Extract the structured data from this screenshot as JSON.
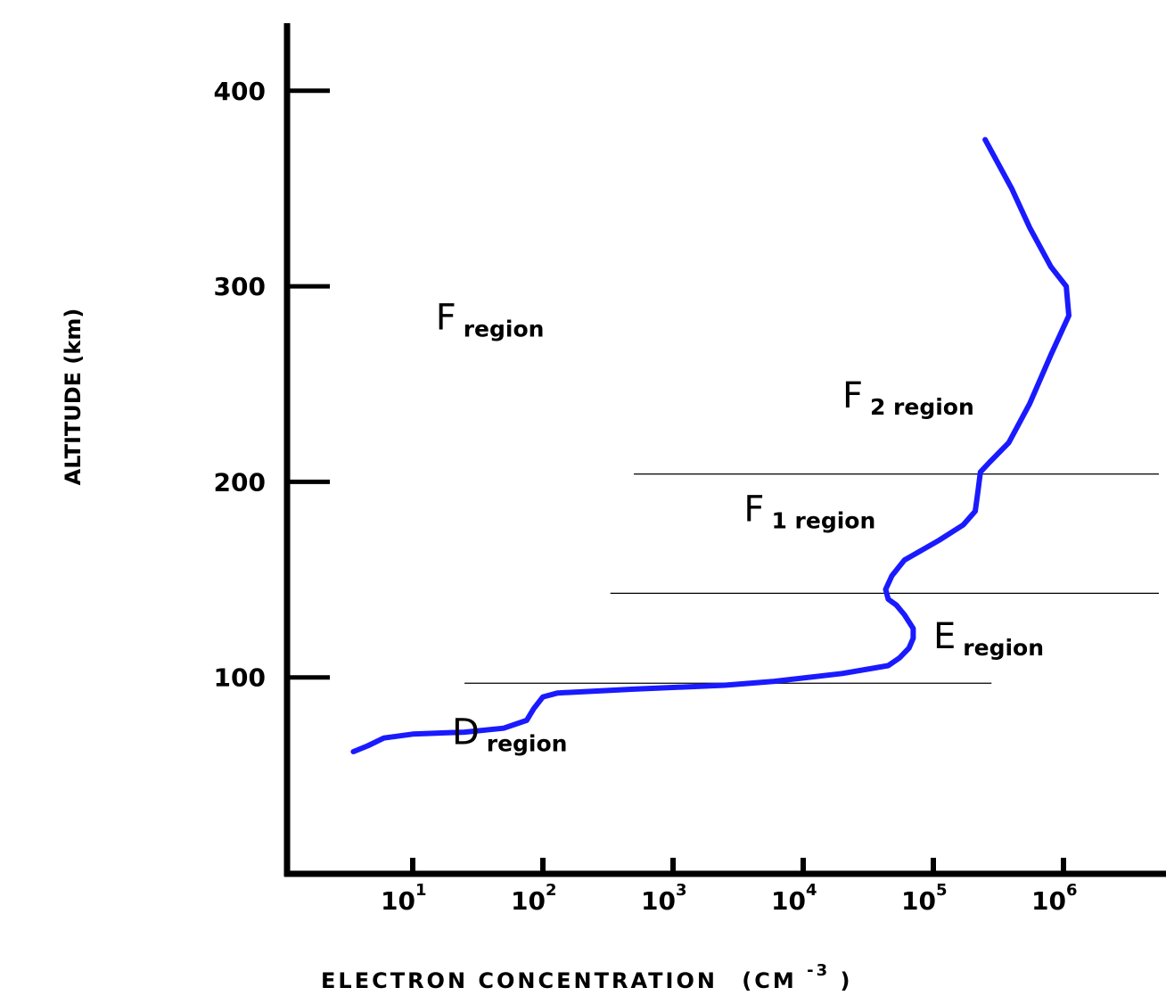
{
  "chart_data": {
    "type": "line",
    "title": "",
    "xlabel": "ELECTRON CONCENTRATION",
    "xlabel_unit": "(CM",
    "xlabel_unit_exp": "-3",
    "xlabel_unit_close": ")",
    "ylabel": "ALTITUDE (km)",
    "x_scale": "log",
    "xlim": [
      1,
      10000000
    ],
    "ylim": [
      0,
      430
    ],
    "y_ticks": [
      100,
      200,
      300,
      400
    ],
    "x_ticks": [
      {
        "base": "10",
        "exp": "1",
        "value": 10
      },
      {
        "base": "10",
        "exp": "2",
        "value": 100
      },
      {
        "base": "10",
        "exp": "3",
        "value": 1000
      },
      {
        "base": "10",
        "exp": "4",
        "value": 10000
      },
      {
        "base": "10",
        "exp": "5",
        "value": 100000
      },
      {
        "base": "10",
        "exp": "6",
        "value": 1000000
      }
    ],
    "grid": false,
    "line_color": "#1a1aff",
    "series": [
      {
        "points": [
          [
            3.5,
            62
          ],
          [
            4.5,
            65
          ],
          [
            6,
            69
          ],
          [
            10,
            71
          ],
          [
            25,
            72
          ],
          [
            50,
            74
          ],
          [
            75,
            78
          ],
          [
            85,
            84
          ],
          [
            100,
            90
          ],
          [
            130,
            92
          ],
          [
            500,
            94
          ],
          [
            2500,
            96
          ],
          [
            6000,
            98
          ],
          [
            20000,
            102
          ],
          [
            45000,
            106
          ],
          [
            55000,
            110
          ],
          [
            65000,
            115
          ],
          [
            70000,
            120
          ],
          [
            70000,
            125
          ],
          [
            60000,
            132
          ],
          [
            52000,
            137
          ],
          [
            45000,
            140
          ],
          [
            43000,
            145
          ],
          [
            48000,
            152
          ],
          [
            60000,
            160
          ],
          [
            110000,
            170
          ],
          [
            170000,
            178
          ],
          [
            210000,
            185
          ],
          [
            220000,
            195
          ],
          [
            230000,
            205
          ],
          [
            270000,
            210
          ],
          [
            380000,
            220
          ],
          [
            550000,
            240
          ],
          [
            800000,
            265
          ],
          [
            1100000,
            285
          ],
          [
            1050000,
            300
          ],
          [
            800000,
            310
          ],
          [
            550000,
            330
          ],
          [
            400000,
            350
          ],
          [
            250000,
            375
          ]
        ]
      }
    ],
    "boundaries": [
      {
        "altitude": 204,
        "x_from": 500,
        "x_to": 15000000
      },
      {
        "altitude": 143,
        "x_from": 330,
        "x_to": 10000000
      },
      {
        "altitude": 97,
        "x_from": 25,
        "x_to": 280000
      }
    ],
    "annotations": [
      {
        "main": "F",
        "sub": "region",
        "x": 15,
        "y": 278
      },
      {
        "main": "F",
        "sub": "2 region",
        "x": 20000,
        "y": 238
      },
      {
        "main": "F",
        "sub": "1 region",
        "x": 3500,
        "y": 180
      },
      {
        "main": "E",
        "sub": "region",
        "x": 100000,
        "y": 115
      },
      {
        "main": "D",
        "sub": "region",
        "x": 20,
        "y": 66
      }
    ]
  }
}
